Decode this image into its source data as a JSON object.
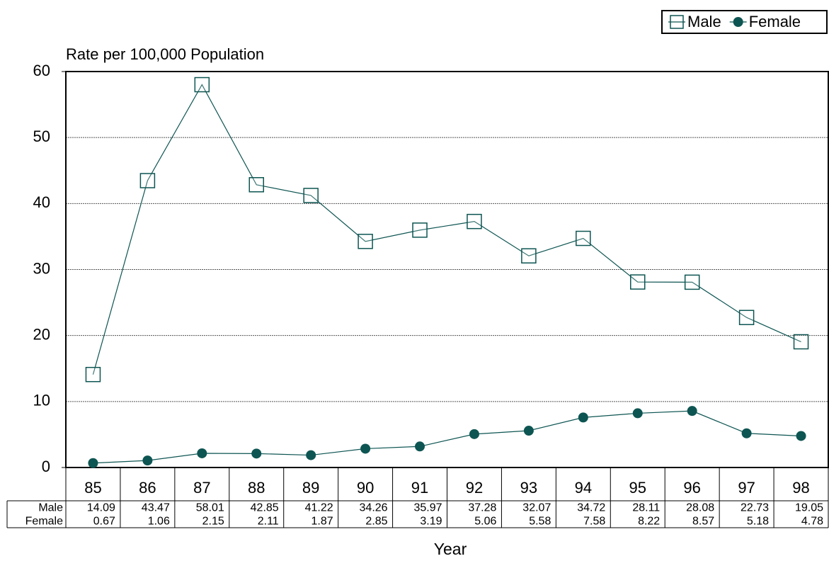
{
  "chart_data": {
    "type": "line",
    "ylabel": "Rate per 100,000 Population",
    "xlabel": "Year",
    "categories": [
      "85",
      "86",
      "87",
      "88",
      "89",
      "90",
      "91",
      "92",
      "93",
      "94",
      "95",
      "96",
      "97",
      "98"
    ],
    "series": [
      {
        "name": "Male",
        "color": "#0d5552",
        "marker": "square",
        "values": [
          14.09,
          43.47,
          58.01,
          42.85,
          41.22,
          34.26,
          35.97,
          37.28,
          32.07,
          34.72,
          28.11,
          28.08,
          22.73,
          19.05
        ]
      },
      {
        "name": "Female",
        "color": "#0d5552",
        "marker": "circle",
        "values": [
          0.67,
          1.06,
          2.15,
          2.11,
          1.87,
          2.85,
          3.19,
          5.06,
          5.58,
          7.58,
          8.22,
          8.57,
          5.18,
          4.78
        ]
      }
    ],
    "ylim": [
      0,
      60
    ],
    "yticks": [
      0,
      10,
      20,
      30,
      40,
      50,
      60
    ],
    "grid": true,
    "legend": "top-right",
    "data_table": true
  }
}
